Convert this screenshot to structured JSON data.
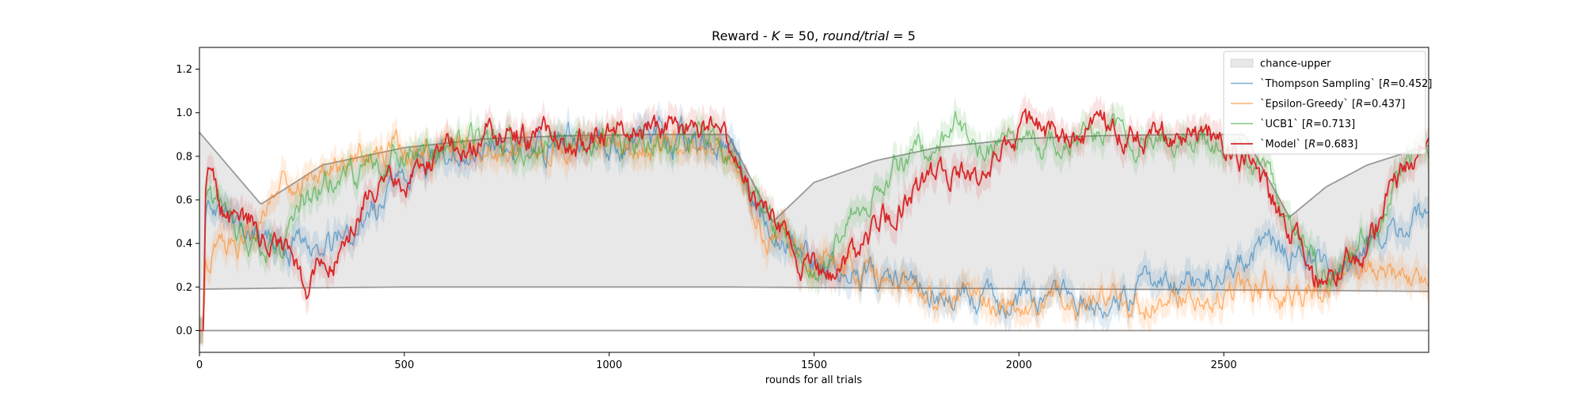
{
  "chart_data": {
    "type": "line",
    "title": "Reward - K = 50, round/trial = 5",
    "title_parts": {
      "prefix": "Reward - ",
      "k_symbol": "K",
      "k_value": " = 50, ",
      "rt_symbol": "round/trial",
      "rt_value": " = 5"
    },
    "xlabel": "rounds for all trials",
    "ylabel": "",
    "xlim": [
      0,
      3000
    ],
    "ylim": [
      -0.1,
      1.3
    ],
    "xticks": [
      0,
      500,
      1000,
      1500,
      2000,
      2500
    ],
    "xtick_labels": [
      "0",
      "500",
      "1000",
      "1500",
      "2000",
      "2500"
    ],
    "yticks": [
      0.0,
      0.2,
      0.4,
      0.6,
      0.8,
      1.0,
      1.2
    ],
    "ytick_labels": [
      "0.0",
      "0.2",
      "0.4",
      "0.6",
      "0.8",
      "1.0",
      "1.2"
    ],
    "grid": false,
    "legend_position": "top-right",
    "chance_band": {
      "name": "chance-upper",
      "color": "#e8e8e8",
      "upper": {
        "x": [
          0,
          150,
          300,
          500,
          700,
          900,
          1100,
          1290,
          1400,
          1500,
          1650,
          1800,
          2000,
          2200,
          2400,
          2550,
          2660,
          2750,
          2850,
          3000
        ],
        "y": [
          0.91,
          0.58,
          0.76,
          0.84,
          0.88,
          0.895,
          0.9,
          0.9,
          0.5,
          0.68,
          0.78,
          0.84,
          0.88,
          0.895,
          0.9,
          0.9,
          0.52,
          0.66,
          0.76,
          0.85
        ]
      },
      "lower": {
        "x": [
          0,
          200,
          500,
          900,
          1290,
          1700,
          2200,
          2660,
          3000
        ],
        "y": [
          0.19,
          0.195,
          0.2,
          0.2,
          0.2,
          0.195,
          0.19,
          0.185,
          0.18
        ]
      },
      "baseline": 0.0
    },
    "series": [
      {
        "name": "`Thompson Sampling`",
        "stat": "R=0.452",
        "color": "#1f77b4",
        "x": [
          0,
          10,
          15,
          30,
          60,
          100,
          150,
          200,
          270,
          330,
          400,
          500,
          600,
          700,
          800,
          900,
          1000,
          1100,
          1200,
          1280,
          1320,
          1400,
          1480,
          1550,
          1600,
          1700,
          1800,
          1900,
          2000,
          2100,
          2200,
          2300,
          2400,
          2500,
          2560,
          2600,
          2650,
          2700,
          2750,
          2800,
          2850,
          2900,
          2950,
          3000
        ],
        "y": [
          0.0,
          0.0,
          0.55,
          0.62,
          0.55,
          0.5,
          0.42,
          0.4,
          0.35,
          0.4,
          0.48,
          0.68,
          0.82,
          0.86,
          0.85,
          0.87,
          0.86,
          0.88,
          0.87,
          0.87,
          0.72,
          0.45,
          0.33,
          0.26,
          0.28,
          0.2,
          0.17,
          0.15,
          0.13,
          0.15,
          0.14,
          0.18,
          0.2,
          0.24,
          0.33,
          0.4,
          0.35,
          0.3,
          0.28,
          0.3,
          0.38,
          0.45,
          0.5,
          0.52
        ]
      },
      {
        "name": "`Epsilon-Greedy`",
        "stat": "R=0.437",
        "color": "#ff7f0e",
        "x": [
          0,
          10,
          15,
          30,
          60,
          100,
          150,
          200,
          270,
          330,
          400,
          500,
          600,
          700,
          800,
          900,
          1000,
          1100,
          1200,
          1280,
          1320,
          1400,
          1480,
          1550,
          1600,
          1700,
          1800,
          1900,
          2000,
          2100,
          2200,
          2300,
          2400,
          2500,
          2560,
          2600,
          2650,
          2700,
          2750,
          2800,
          2850,
          2900,
          2950,
          3000
        ],
        "y": [
          0.0,
          0.0,
          0.28,
          0.35,
          0.4,
          0.42,
          0.55,
          0.68,
          0.72,
          0.76,
          0.8,
          0.82,
          0.84,
          0.83,
          0.86,
          0.84,
          0.85,
          0.82,
          0.84,
          0.8,
          0.68,
          0.42,
          0.33,
          0.28,
          0.24,
          0.2,
          0.15,
          0.13,
          0.11,
          0.12,
          0.1,
          0.12,
          0.15,
          0.17,
          0.2,
          0.19,
          0.18,
          0.18,
          0.2,
          0.25,
          0.3,
          0.22,
          0.2,
          0.2
        ]
      },
      {
        "name": "`UCB1`",
        "stat": "R=0.713",
        "color": "#2ca02c",
        "x": [
          0,
          10,
          15,
          30,
          60,
          100,
          150,
          200,
          250,
          300,
          350,
          400,
          500,
          600,
          700,
          800,
          900,
          1000,
          1100,
          1200,
          1280,
          1320,
          1400,
          1480,
          1520,
          1560,
          1600,
          1650,
          1700,
          1800,
          1850,
          1900,
          2000,
          2100,
          2200,
          2300,
          2400,
          2500,
          2560,
          2600,
          2650,
          2700,
          2750,
          2800,
          2850,
          2900,
          2950,
          3000
        ],
        "y": [
          0.0,
          0.0,
          0.65,
          0.6,
          0.52,
          0.45,
          0.42,
          0.38,
          0.55,
          0.65,
          0.78,
          0.72,
          0.82,
          0.85,
          0.88,
          0.86,
          0.88,
          0.87,
          0.89,
          0.88,
          0.84,
          0.7,
          0.45,
          0.3,
          0.28,
          0.38,
          0.55,
          0.68,
          0.75,
          0.88,
          0.92,
          0.85,
          0.88,
          0.85,
          0.9,
          0.88,
          0.9,
          0.86,
          0.78,
          0.65,
          0.55,
          0.42,
          0.25,
          0.35,
          0.45,
          0.6,
          0.78,
          0.85
        ]
      },
      {
        "name": "`Model`",
        "stat": "R=0.683",
        "color": "#d62728",
        "x": [
          0,
          10,
          15,
          25,
          50,
          80,
          120,
          160,
          200,
          240,
          270,
          300,
          350,
          400,
          450,
          500,
          550,
          600,
          700,
          800,
          900,
          1000,
          1100,
          1200,
          1280,
          1320,
          1380,
          1440,
          1500,
          1530,
          1560,
          1600,
          1650,
          1700,
          1750,
          1800,
          1850,
          1900,
          2000,
          2100,
          2200,
          2300,
          2400,
          2500,
          2560,
          2600,
          2650,
          2700,
          2720,
          2750,
          2800,
          2850,
          2900,
          2950,
          3000
        ],
        "y": [
          0.0,
          0.0,
          0.7,
          0.72,
          0.55,
          0.52,
          0.5,
          0.45,
          0.35,
          0.25,
          0.2,
          0.3,
          0.4,
          0.6,
          0.78,
          0.72,
          0.78,
          0.84,
          0.88,
          0.9,
          0.88,
          0.9,
          0.92,
          0.92,
          0.9,
          0.7,
          0.55,
          0.38,
          0.27,
          0.24,
          0.3,
          0.35,
          0.45,
          0.55,
          0.65,
          0.7,
          0.75,
          0.7,
          0.88,
          0.9,
          0.92,
          0.9,
          0.92,
          0.88,
          0.8,
          0.62,
          0.55,
          0.35,
          0.22,
          0.26,
          0.3,
          0.38,
          0.6,
          0.75,
          0.88
        ]
      }
    ]
  }
}
